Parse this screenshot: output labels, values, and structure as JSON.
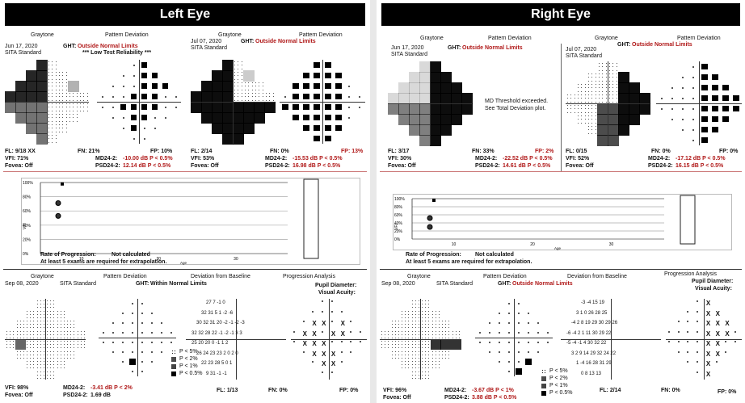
{
  "left": {
    "header": "Left Eye",
    "exam1": {
      "graytone": "Graytone",
      "pattern_deviation": "Pattern Deviation",
      "date": "Jun 17, 2020",
      "program": "SITA Standard",
      "ght_label": "GHT:",
      "ght_value": "Outside Normal Limits",
      "reliability": "*** Low Test Reliability ***",
      "fl": "FL: 9/18 XX",
      "fn": "FN: 21%",
      "fp": "FP: 10%",
      "vfi": "VFI: 71%",
      "md_label": "MD24-2:",
      "md_value": "-10.00 dB P < 0.5%",
      "fovea": "Fovea: Off",
      "psd_label": "PSD24-2:",
      "psd_value": "12.14 dB P < 0.5%"
    },
    "exam2": {
      "graytone": "Graytone",
      "pattern_deviation": "Pattern Deviation",
      "date": "Jul 07, 2020",
      "program": "SITA Standard",
      "ght_label": "GHT:",
      "ght_value": "Outside Normal Limits",
      "fl": "FL: 2/14",
      "fn": "FN: 0%",
      "fp": "FP: 13%",
      "vfi": "VFI: 53%",
      "md_label": "MD24-2:",
      "md_value": "-15.53 dB P < 0.5%",
      "fovea": "Fovea: Off",
      "psd_label": "PSD24-2:",
      "psd_value": "16.98 dB P < 0.5%"
    },
    "vfi_chart": {
      "y_ticks": [
        "100%",
        "80%",
        "60%",
        "40%",
        "20%",
        "0%"
      ],
      "x_ticks": [
        "10",
        "20",
        "30"
      ],
      "ylabel": "VFI",
      "xlabel": "Age",
      "rate_label": "Rate of Progression:",
      "rate_value": "Not calculated",
      "note": "At least 5 exams are required for extrapolation."
    },
    "exam3": {
      "graytone": "Graytone",
      "pattern_deviation": "Pattern Deviation",
      "deviation_baseline": "Deviation from Baseline",
      "progression_analysis": "Progression Analysis",
      "date": "Sep 08, 2020",
      "program": "SITA Standard",
      "ght_label": "GHT:",
      "ght_value": "Within Normal Limits",
      "pupil": "Pupil Diameter:",
      "acuity": "Visual Acuity:",
      "vfi": "VFI: 98%",
      "fovea": "Fovea: Off",
      "md_label": "MD24-2:",
      "md_value": "-3.41 dB P < 2%",
      "psd_label": "PSD24-2:",
      "psd_value": "1.69 dB",
      "fl": "FL: 1/13",
      "fn": "FN: 0%",
      "fp": "FP: 0%",
      "legend": [
        "P < 5%",
        "P < 2%",
        "P < 1%",
        "P < 0.5%"
      ],
      "deviation_rows": [
        "27  7  -1  0",
        "32 31  5  1  -2  -6",
        "30 32 31 20  -2  -1  -2  -3",
        "32 32 28 22  -1  -2  -1  3  3",
        "25    20 20  0  -1  1  2",
        "26 24 23 23  2  0  2  0",
        "22 23 28  5  0  1",
        "9 31  -1  -1"
      ]
    }
  },
  "right": {
    "header": "Right Eye",
    "exam1": {
      "graytone": "Graytone",
      "pattern_deviation": "Pattern Deviation",
      "date": "Jun 17, 2020",
      "program": "SITA Standard",
      "ght_label": "GHT:",
      "ght_value": "Outside Normal Limits",
      "md_note1": "MD Threshold exceeded.",
      "md_note2": "See Total Deviation plot.",
      "fl": "FL: 3/17",
      "fn": "FN: 33%",
      "fp": "FP: 2%",
      "vfi": "VFI: 30%",
      "md_label": "MD24-2:",
      "md_value": "-22.52 dB P < 0.5%",
      "fovea": "Fovea: Off",
      "psd_label": "PSD24-2:",
      "psd_value": "14.61 dB P < 0.5%"
    },
    "exam2": {
      "graytone": "Graytone",
      "pattern_deviation": "Pattern Deviation",
      "date": "Jul 07, 2020",
      "program": "SITA Standard",
      "ght_label": "GHT:",
      "ght_value": "Outside Normal Limits",
      "fl": "FL: 0/15",
      "fn": "FN: 0%",
      "fp": "FP: 0%",
      "vfi": "VFI: 52%",
      "md_label": "MD24-2:",
      "md_value": "-17.12 dB P < 0.5%",
      "fovea": "Fovea: Off",
      "psd_label": "PSD24-2:",
      "psd_value": "16.15 dB P < 0.5%"
    },
    "vfi_chart": {
      "y_ticks": [
        "100%",
        "80%",
        "60%",
        "40%",
        "20%",
        "0%"
      ],
      "x_ticks": [
        "10",
        "20",
        "30"
      ],
      "ylabel": "VFI",
      "xlabel": "Age",
      "rate_label": "Rate of Progression:",
      "rate_value": "Not calculated",
      "note": "At least 5 exams are required for extrapolation."
    },
    "exam3": {
      "graytone": "Graytone",
      "pattern_deviation": "Pattern Deviation",
      "deviation_baseline": "Deviation from Baseline",
      "progression_analysis": "Progression Analysis",
      "date": "Sep 08, 2020",
      "program": "SITA Standard",
      "ght_label": "GHT:",
      "ght_value": "Outside Normal Limits",
      "pupil": "Pupil Diameter:",
      "acuity": "Visual Acuity:",
      "vfi": "VFI: 96%",
      "fovea": "Fovea: Off",
      "md_label": "MD24-2:",
      "md_value": "-3.67 dB P < 1%",
      "psd_label": "PSD24-2:",
      "psd_value": "3.88 dB P < 0.5%",
      "fl": "FL: 2/14",
      "fn": "FN: 0%",
      "fp": "FP: 0%",
      "legend": [
        "P < 5%",
        "P < 2%",
        "P < 1%",
        "P < 0.5%"
      ],
      "deviation_rows": [
        "-3  -4  15  19",
        "3  1  0  26  28  25",
        "-4  2  8  19  29  30  29  26",
        "-6  -4  2  1  11  30  29  22",
        "-5  -4  -1  4  30  32  22",
        "3  2  9  14  29  32  24  22",
        "1  -4  16  28  31  29",
        "0  8  13  13"
      ]
    }
  }
}
